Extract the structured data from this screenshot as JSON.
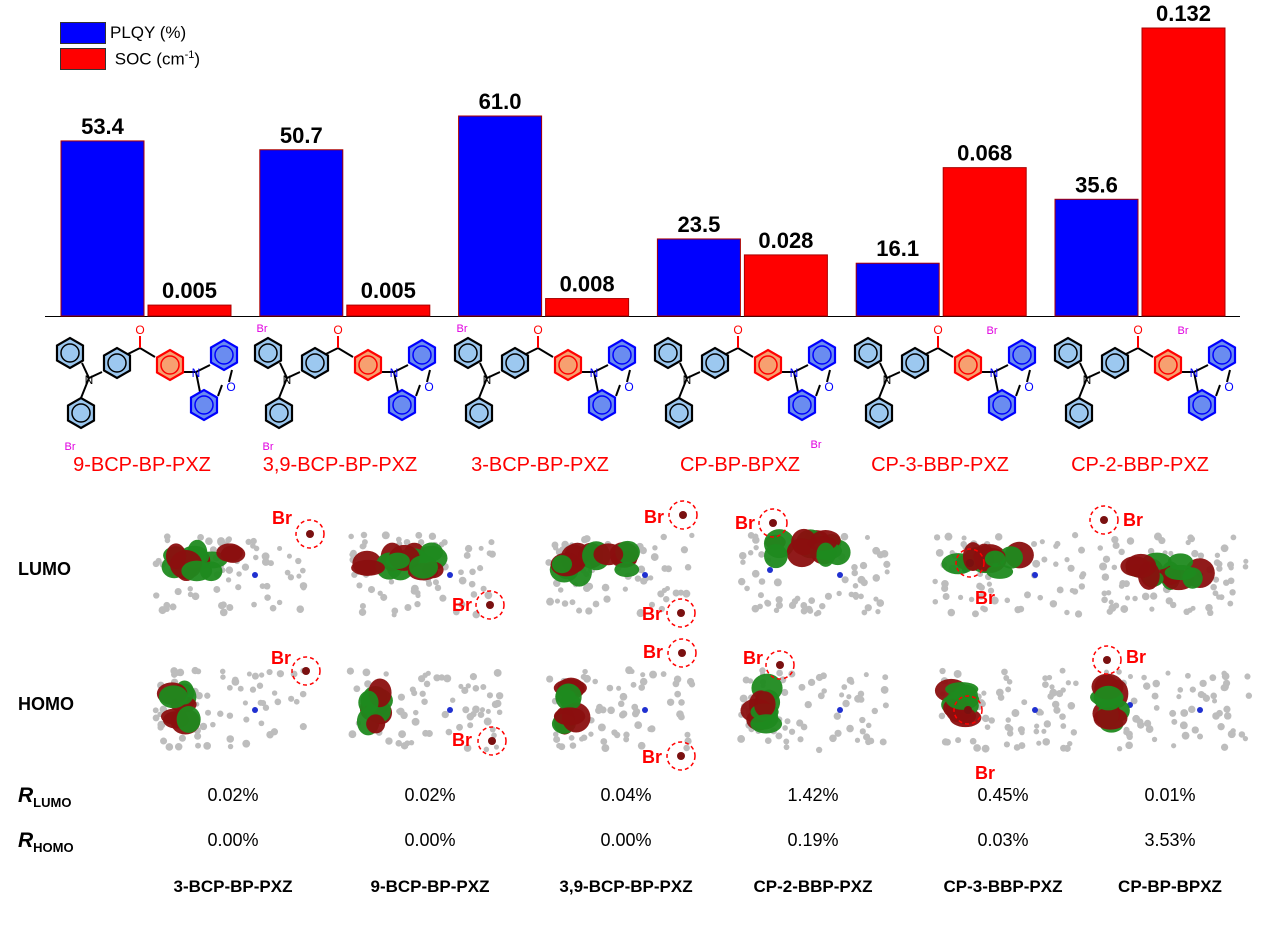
{
  "chart_data": {
    "type": "bar",
    "categories": [
      "9-BCP-BP-PXZ",
      "3,9-BCP-BP-PXZ",
      "3-BCP-BP-PXZ",
      "CP-BP-BPXZ",
      "CP-3-BBP-PXZ",
      "CP-2-BBP-PXZ"
    ],
    "series": [
      {
        "name": "PLQY (%)",
        "color": "#0000ff",
        "values": [
          53.4,
          50.7,
          61.0,
          23.5,
          16.1,
          35.6
        ],
        "labels": [
          "53.4",
          "50.7",
          "61.0",
          "23.5",
          "16.1",
          "35.6"
        ]
      },
      {
        "name": "SOC (cm",
        "name_sup": "-1",
        "name_end": ")",
        "color": "#ff0000",
        "values": [
          0.005,
          0.005,
          0.008,
          0.028,
          0.068,
          0.132
        ],
        "labels": [
          "0.005",
          "0.005",
          "0.008",
          "0.028",
          "0.068",
          "0.132"
        ]
      }
    ],
    "legend": "top-left",
    "grid": false,
    "axes_visible": false
  },
  "structures": {
    "names": [
      "9-BCP-BP-PXZ",
      "3,9-BCP-BP-PXZ",
      "3-BCP-BP-PXZ",
      "CP-BP-BPXZ",
      "CP-3-BBP-PXZ",
      "CP-2-BBP-PXZ"
    ],
    "atom_labels": {
      "br": "Br",
      "n": "N",
      "o": "O"
    }
  },
  "orbitals": {
    "row_labels": [
      "LUMO",
      "HOMO"
    ],
    "br_label": "Br",
    "colors": {
      "positive": "#8b0f0f",
      "negative": "#1f8a1f"
    }
  },
  "ratios": {
    "r_symbol": "R",
    "lumo_sub": "LUMO",
    "homo_sub": "HOMO",
    "lumo": [
      "0.02%",
      "0.02%",
      "0.04%",
      "1.42%",
      "0.45%",
      "0.01%"
    ],
    "homo": [
      "0.00%",
      "0.00%",
      "0.00%",
      "0.19%",
      "0.03%",
      "3.53%"
    ]
  },
  "bottom_names": [
    "3-BCP-BP-PXZ",
    "9-BCP-BP-PXZ",
    "3,9-BCP-BP-PXZ",
    "CP-2-BBP-PXZ",
    "CP-3-BBP-PXZ",
    "CP-BP-BPXZ"
  ]
}
